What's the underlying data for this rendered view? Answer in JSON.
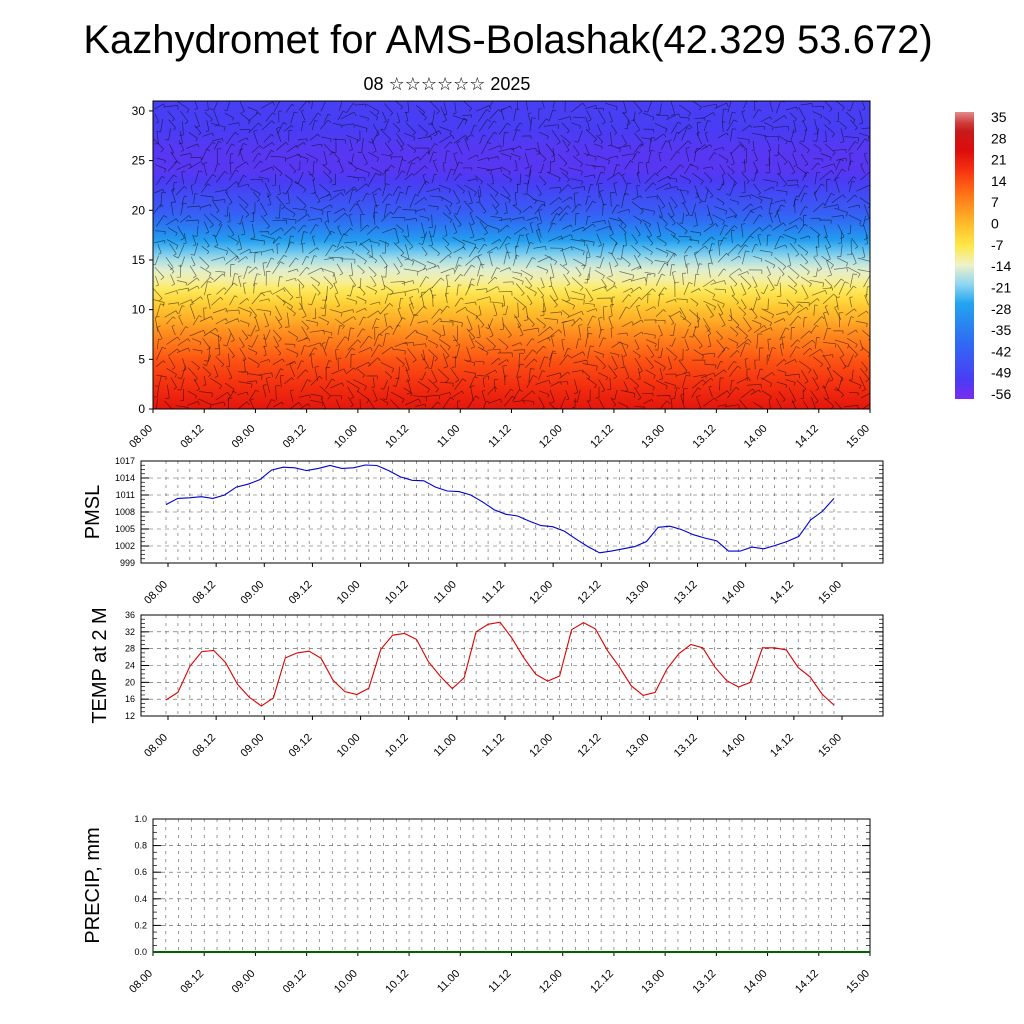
{
  "header": {
    "title": "Kazhydromet for AMS-Bolashak(42.329 53.672)",
    "subtitle": "08 ☆☆☆☆☆☆ 2025"
  },
  "chart_data": [
    {
      "type": "heatmap",
      "name": "vertical-section",
      "title": "",
      "ylabel": "",
      "ylim": [
        0,
        31
      ],
      "yticks": [
        "0",
        "5",
        "10",
        "15",
        "20",
        "25",
        "30"
      ],
      "x_tick_labels": [
        "08.00",
        "08.12",
        "09.00",
        "09.12",
        "10.00",
        "10.12",
        "11.00",
        "11.12",
        "12.00",
        "12.12",
        "13.00",
        "13.12",
        "14.00",
        "14.12",
        "15.00"
      ],
      "z_levels": [
        0,
        1,
        2,
        3,
        4,
        5,
        6,
        7,
        8,
        9,
        10,
        11,
        12,
        13,
        14,
        15,
        16,
        17,
        18,
        19,
        20,
        21,
        22,
        23,
        24,
        25,
        26,
        27,
        28,
        29,
        30,
        31
      ],
      "temperature_profile": [
        26,
        24,
        22,
        20,
        18,
        16,
        13,
        10,
        7,
        3,
        0,
        -4,
        -8,
        -12,
        -15,
        -19,
        -24,
        -30,
        -36,
        -42,
        -47,
        -50,
        -53,
        -56,
        -58,
        -58,
        -58,
        -57,
        -56,
        -55,
        -55,
        -55
      ],
      "colorbar": {
        "labels": [
          "35",
          "28",
          "21",
          "14",
          "7",
          "0",
          "-7",
          "-14",
          "-21",
          "-28",
          "-35",
          "-42",
          "-49",
          "-56"
        ],
        "range": [
          -63,
          42
        ],
        "colors": [
          "#7b2cf0",
          "#4a3cf4",
          "#2f6cf4",
          "#22a5ee",
          "#8fd6f2",
          "#eef2c8",
          "#ffe74a",
          "#ffc22e",
          "#ff9420",
          "#ff6414",
          "#f43010",
          "#dc0c0c",
          "#c81a1a",
          "#cf3d3d",
          "#e38a8a"
        ],
        "color_stops": [
          -63,
          -56,
          -42,
          -28,
          -21,
          -14,
          -7,
          0,
          7,
          14,
          21,
          28,
          35,
          38,
          42
        ]
      },
      "annotation": "wind barbs"
    },
    {
      "type": "line",
      "name": "pmsl",
      "ylabel": "PMSL",
      "ylim": [
        999,
        1017
      ],
      "yticks": [
        "999",
        "1002",
        "1005",
        "1008",
        "1011",
        "1014",
        "1017"
      ],
      "x_tick_labels": [
        "08.00",
        "08.12",
        "09.00",
        "09.12",
        "10.00",
        "10.12",
        "11.00",
        "11.12",
        "12.00",
        "12.12",
        "13.00",
        "13.12",
        "14.00",
        "14.12",
        "15.00"
      ],
      "x_hours_step": 3,
      "color": "#0000cc",
      "values": [
        1009.3,
        1010.4,
        1010.5,
        1010.7,
        1010.4,
        1011.0,
        1012.4,
        1012.9,
        1013.7,
        1015.4,
        1015.9,
        1015.8,
        1015.3,
        1015.7,
        1016.2,
        1015.7,
        1015.8,
        1016.3,
        1016.2,
        1015.3,
        1014.2,
        1013.6,
        1013.5,
        1012.4,
        1011.7,
        1011.6,
        1011.0,
        1009.8,
        1008.4,
        1007.6,
        1007.3,
        1006.4,
        1005.6,
        1005.4,
        1004.6,
        1003.2,
        1001.9,
        1000.8,
        1001.1,
        1001.5,
        1001.9,
        1002.8,
        1005.3,
        1005.5,
        1004.9,
        1004.0,
        1003.4,
        1002.9,
        1001.1,
        1001.1,
        1001.8,
        1001.5,
        1002.1,
        1002.8,
        1003.7,
        1006.6,
        1008.1,
        1010.4
      ]
    },
    {
      "type": "line",
      "name": "temp-2m",
      "ylabel": "TEMP at 2 M",
      "ylim": [
        12,
        36
      ],
      "yticks": [
        "12",
        "16",
        "20",
        "24",
        "28",
        "32",
        "36"
      ],
      "x_tick_labels": [
        "08.00",
        "08.12",
        "09.00",
        "09.12",
        "10.00",
        "10.12",
        "11.00",
        "11.12",
        "12.00",
        "12.12",
        "13.00",
        "13.12",
        "14.00",
        "14.12",
        "15.00"
      ],
      "x_hours_step": 3,
      "color": "#dd0000",
      "values": [
        15.8,
        17.6,
        23.8,
        27.3,
        27.6,
        24.7,
        19.5,
        16.4,
        14.4,
        16.3,
        25.8,
        27.0,
        27.4,
        25.7,
        20.5,
        17.8,
        17.1,
        18.6,
        27.8,
        31.2,
        31.6,
        30.2,
        24.9,
        21.4,
        18.5,
        21.1,
        32.0,
        33.8,
        34.3,
        30.5,
        25.8,
        21.9,
        20.3,
        21.5,
        32.5,
        34.2,
        32.7,
        27.6,
        23.7,
        19.2,
        16.9,
        17.6,
        23.2,
        26.8,
        29.0,
        28.2,
        23.7,
        20.4,
        18.9,
        20.0,
        28.2,
        28.2,
        27.7,
        23.5,
        21.3,
        17.2,
        14.6
      ]
    },
    {
      "type": "bar",
      "name": "precip",
      "ylabel": "PRECIP, mm",
      "ylim": [
        0,
        1
      ],
      "yticks": [
        "0.0",
        "0.2",
        "0.4",
        "0.6",
        "0.8",
        "1.0"
      ],
      "x_tick_labels": [
        "08.00",
        "08.12",
        "09.00",
        "09.12",
        "10.00",
        "10.12",
        "11.00",
        "11.12",
        "12.00",
        "12.12",
        "13.00",
        "13.12",
        "14.00",
        "14.12",
        "15.00"
      ],
      "color": "#006400",
      "values": [
        0,
        0,
        0,
        0,
        0,
        0,
        0,
        0,
        0,
        0,
        0,
        0,
        0,
        0,
        0,
        0,
        0,
        0,
        0,
        0,
        0,
        0,
        0,
        0,
        0,
        0,
        0,
        0,
        0
      ]
    }
  ]
}
